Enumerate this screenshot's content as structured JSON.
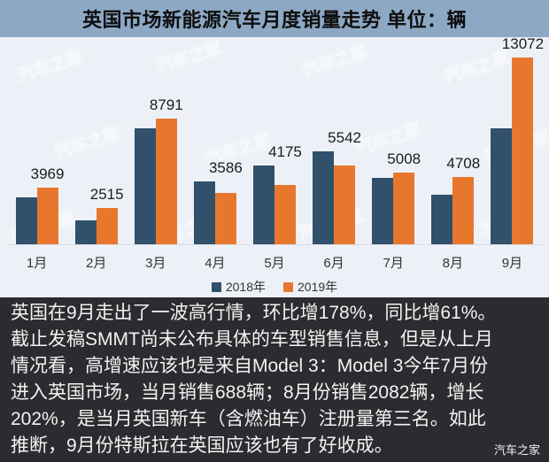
{
  "title": "英国市场新能源汽车月度销量走势  单位：辆",
  "chart_data": {
    "type": "bar",
    "title": "英国市场新能源汽车月度销量走势",
    "unit_label": "单位：辆",
    "categories": [
      "1月",
      "2月",
      "3月",
      "4月",
      "5月",
      "6月",
      "7月",
      "8月",
      "9月"
    ],
    "series": [
      {
        "name": "2018年",
        "color": "#30506C",
        "values": [
          3270,
          1670,
          8100,
          4400,
          5500,
          6500,
          4640,
          3470,
          8120
        ],
        "values_estimated": true
      },
      {
        "name": "2019年",
        "color": "#E8772E",
        "values": [
          3969,
          2515,
          8791,
          3586,
          4175,
          5542,
          5008,
          4708,
          13072
        ],
        "values_estimated": false
      }
    ],
    "value_labels": [
      "3969",
      "2515",
      "8791",
      "3586",
      "4175",
      "5542",
      "5008",
      "4708",
      "13072"
    ],
    "xlabel": "",
    "ylabel": "",
    "ylim": [
      0,
      14000
    ],
    "grid": false,
    "legend_position": "bottom"
  },
  "legend": {
    "item_2018": "2018年",
    "item_2019": "2019年"
  },
  "article": {
    "lines": [
      "英国在9月走出了一波高行情，环比增178%，同比增61%。",
      "截止发稿SMMT尚未公布具体的车型销售信息，但是从上月",
      "情况看，高增速应该也是来自Model 3：Model 3今年7月份",
      "进入英国市场，当月销售688辆；8月份销售2082辆，增长",
      "202%，是当月英国新车（含燃油车）注册量第三名。如此",
      "推断，9月份特斯拉在英国应该也有了好收成。"
    ]
  },
  "watermark": {
    "text": "汽车之家"
  },
  "colors": {
    "title_bar_bg": "#8CA8C4",
    "chart_bg": "#EDF1F7",
    "bar_2018": "#30506C",
    "bar_2019": "#E8772E",
    "article_bg": "#2A2C2F",
    "article_text": "#F2F2F2",
    "value_label_text": "#1C1C1C"
  }
}
